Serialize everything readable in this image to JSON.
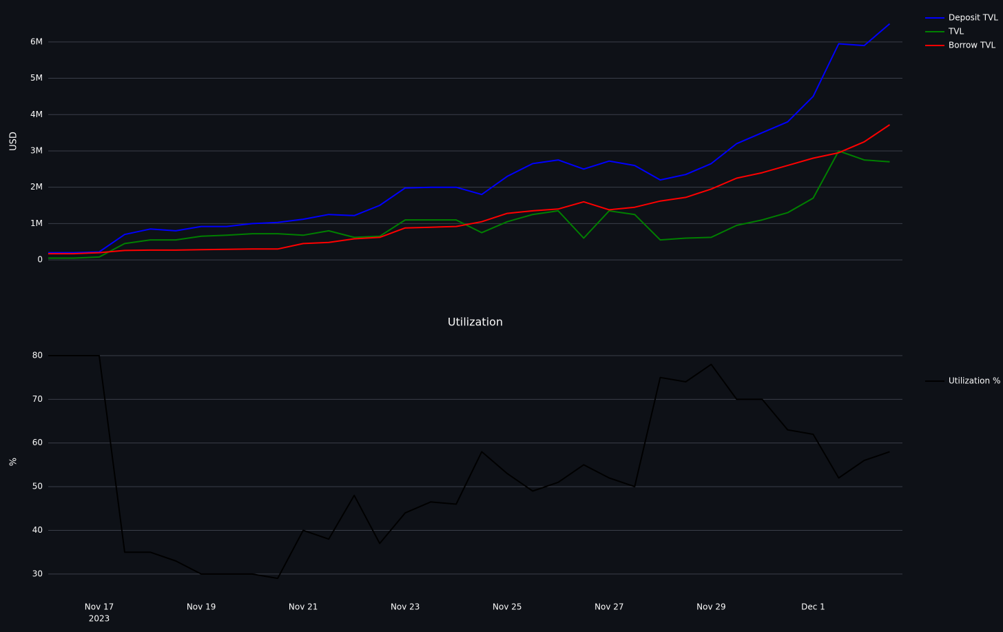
{
  "chart_data": [
    {
      "type": "line",
      "ylabel": "USD",
      "grid": true,
      "legend": "right",
      "x": [
        "2023-11-16T00:00",
        "2023-11-16T12:00",
        "2023-11-17T00:00",
        "2023-11-17T12:00",
        "2023-11-18T00:00",
        "2023-11-18T12:00",
        "2023-11-19T00:00",
        "2023-11-19T12:00",
        "2023-11-20T00:00",
        "2023-11-20T12:00",
        "2023-11-21T00:00",
        "2023-11-21T12:00",
        "2023-11-22T00:00",
        "2023-11-22T12:00",
        "2023-11-23T00:00",
        "2023-11-23T12:00",
        "2023-11-24T00:00",
        "2023-11-24T12:00",
        "2023-11-25T00:00",
        "2023-11-25T12:00",
        "2023-11-26T00:00",
        "2023-11-26T12:00",
        "2023-11-27T00:00",
        "2023-11-27T12:00",
        "2023-11-28T00:00",
        "2023-11-28T12:00",
        "2023-11-29T00:00",
        "2023-11-29T12:00",
        "2023-11-30T00:00",
        "2023-11-30T12:00",
        "2023-12-01T00:00",
        "2023-12-01T12:00",
        "2023-12-02T00:00",
        "2023-12-02T12:00"
      ],
      "xlim": [
        "2023-11-16T00:00",
        "2023-12-02T18:00"
      ],
      "ylim": [
        -150000,
        6680000
      ],
      "yticks": [
        0,
        {
          "value": 1000000,
          "label": "1M"
        },
        {
          "value": 2000000,
          "label": "2M"
        },
        {
          "value": 3000000,
          "label": "3M"
        },
        {
          "value": 4000000,
          "label": "4M"
        },
        {
          "value": 5000000,
          "label": "5M"
        },
        {
          "value": 6000000,
          "label": "6M"
        }
      ],
      "series": [
        {
          "name": "Deposit TVL",
          "color": "#0000ff",
          "values": [
            200000,
            200000,
            220000,
            700000,
            850000,
            800000,
            920000,
            920000,
            1000000,
            1030000,
            1120000,
            1250000,
            1220000,
            1500000,
            1980000,
            2000000,
            2000000,
            1800000,
            2300000,
            2650000,
            2750000,
            2500000,
            2720000,
            2600000,
            2200000,
            2350000,
            2650000,
            3200000,
            3500000,
            3800000,
            4500000,
            5950000,
            5900000,
            6500000
          ]
        },
        {
          "name": "TVL",
          "color": "#008000",
          "values": [
            50000,
            50000,
            80000,
            450000,
            550000,
            550000,
            650000,
            680000,
            720000,
            720000,
            680000,
            800000,
            620000,
            650000,
            1100000,
            1100000,
            1100000,
            750000,
            1050000,
            1250000,
            1350000,
            600000,
            1350000,
            1250000,
            550000,
            600000,
            620000,
            950000,
            1100000,
            1300000,
            1700000,
            3000000,
            2750000,
            2700000
          ]
        },
        {
          "name": "Borrow TVL",
          "color": "#ff0000",
          "values": [
            170000,
            170000,
            200000,
            260000,
            270000,
            270000,
            280000,
            290000,
            300000,
            300000,
            450000,
            480000,
            580000,
            620000,
            880000,
            900000,
            920000,
            1050000,
            1280000,
            1350000,
            1400000,
            1600000,
            1380000,
            1450000,
            1620000,
            1720000,
            1950000,
            2250000,
            2400000,
            2600000,
            2800000,
            2950000,
            3250000,
            3720000
          ]
        }
      ]
    },
    {
      "type": "line",
      "title": "Utilization",
      "ylabel": "%",
      "grid": true,
      "legend": "right",
      "x": [
        "2023-11-16T00:00",
        "2023-11-16T12:00",
        "2023-11-17T00:00",
        "2023-11-17T12:00",
        "2023-11-18T00:00",
        "2023-11-18T12:00",
        "2023-11-19T00:00",
        "2023-11-19T12:00",
        "2023-11-20T00:00",
        "2023-11-20T12:00",
        "2023-11-21T00:00",
        "2023-11-21T12:00",
        "2023-11-22T00:00",
        "2023-11-22T12:00",
        "2023-11-23T00:00",
        "2023-11-23T12:00",
        "2023-11-24T00:00",
        "2023-11-24T12:00",
        "2023-11-25T00:00",
        "2023-11-25T12:00",
        "2023-11-26T00:00",
        "2023-11-26T12:00",
        "2023-11-27T00:00",
        "2023-11-27T12:00",
        "2023-11-28T00:00",
        "2023-11-28T12:00",
        "2023-11-29T00:00",
        "2023-11-29T12:00",
        "2023-11-30T00:00",
        "2023-11-30T12:00",
        "2023-12-01T00:00",
        "2023-12-01T12:00",
        "2023-12-02T00:00",
        "2023-12-02T12:00"
      ],
      "xlim": [
        "2023-11-16T00:00",
        "2023-12-02T18:00"
      ],
      "xticks": [
        {
          "value": "2023-11-17T00:00",
          "label": "Nov 17"
        },
        {
          "value": "2023-11-19T00:00",
          "label": "Nov 19"
        },
        {
          "value": "2023-11-21T00:00",
          "label": "Nov 21"
        },
        {
          "value": "2023-11-23T00:00",
          "label": "Nov 23"
        },
        {
          "value": "2023-11-25T00:00",
          "label": "Nov 25"
        },
        {
          "value": "2023-11-27T00:00",
          "label": "Nov 27"
        },
        {
          "value": "2023-11-29T00:00",
          "label": "Nov 29"
        },
        {
          "value": "2023-12-01T00:00",
          "label": "Dec 1"
        }
      ],
      "xtick_year": "2023",
      "ylim": [
        27.3,
        84.1
      ],
      "yticks": [
        30,
        40,
        50,
        60,
        70,
        80
      ],
      "series": [
        {
          "name": "Utilization %",
          "color": "#000000",
          "values": [
            80,
            80,
            80,
            35,
            35,
            33,
            30,
            30,
            30,
            29,
            40,
            38,
            48,
            37,
            44,
            46.5,
            46,
            58,
            53,
            49,
            51,
            55,
            52,
            50,
            75,
            74,
            78,
            70,
            70,
            63,
            62,
            52,
            56,
            58
          ]
        }
      ]
    }
  ]
}
